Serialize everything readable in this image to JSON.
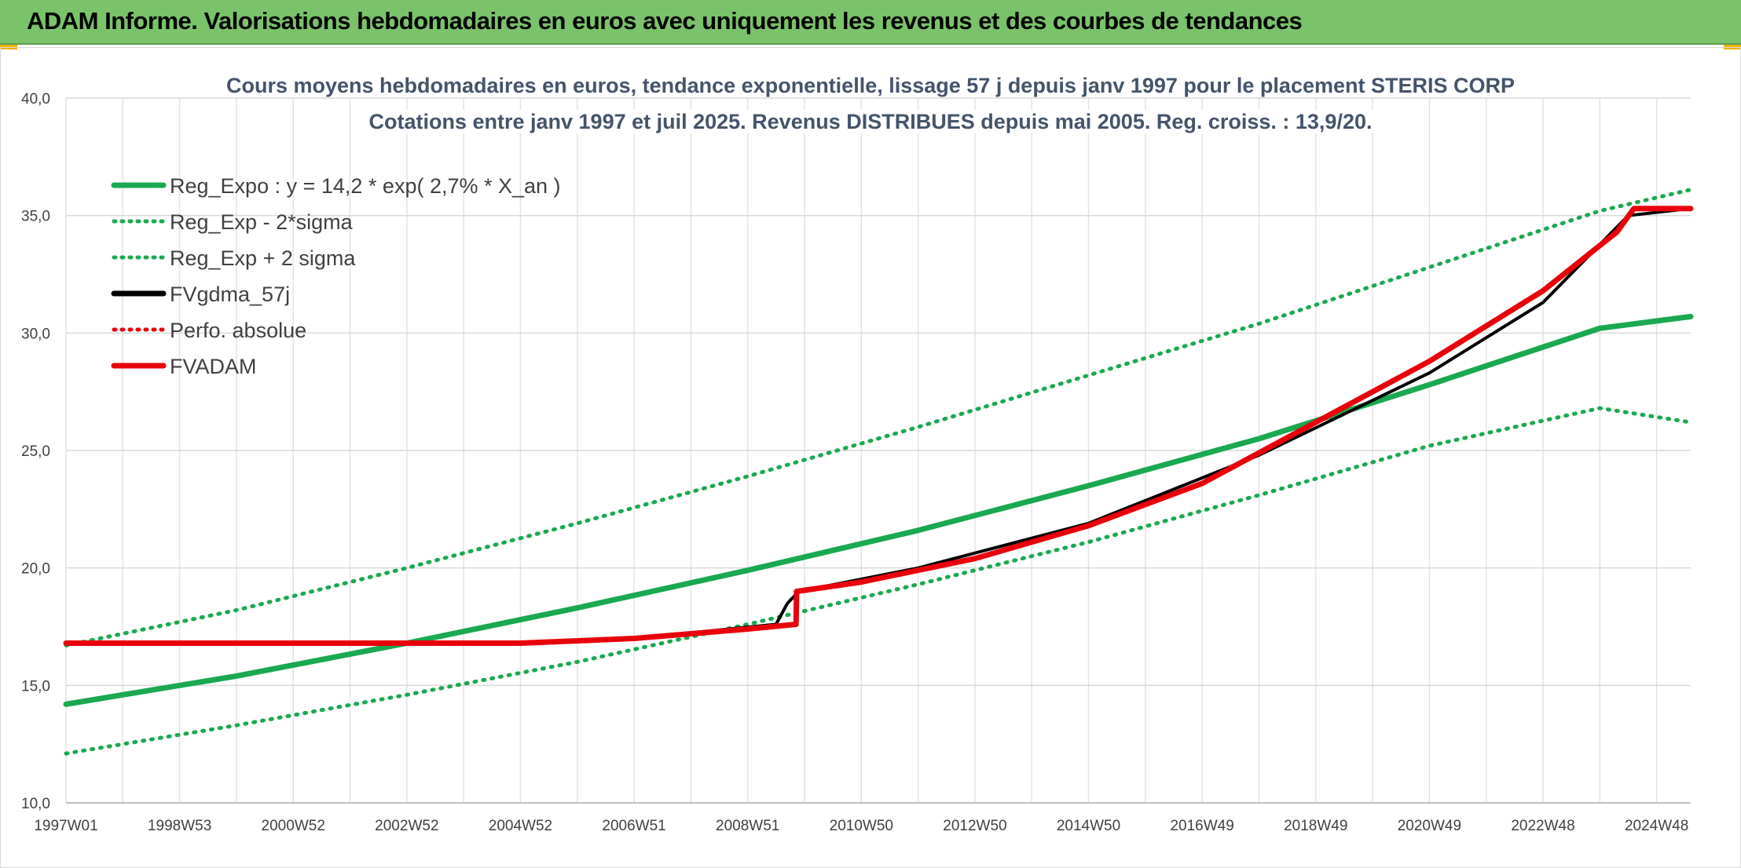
{
  "header": {
    "title": "ADAM Informe. Valorisations hebdomadaires en euros avec uniquement les revenus et des courbes de tendances"
  },
  "chart_data": {
    "type": "line",
    "title_line1": "Cours moyens hebdomadaires en euros, tendance exponentielle, lissage 57 j depuis janv 1997 pour le placement STERIS CORP",
    "title_line2": "Cotations entre janv 1997 et juil 2025. Revenus DISTRIBUES depuis mai 2005. Reg. croiss. : 13,9/20.",
    "x_tick_labels": [
      "1997W01",
      "1998W53",
      "2000W52",
      "2002W52",
      "2004W52",
      "2006W51",
      "2008W51",
      "2010W50",
      "2012W50",
      "2014W50",
      "2016W49",
      "2018W49",
      "2020W49",
      "2022W48",
      "2024W48"
    ],
    "x_tick_years": [
      1997.0,
      1999.0,
      2001.0,
      2003.0,
      2005.0,
      2007.0,
      2009.0,
      2011.0,
      2013.0,
      2015.0,
      2017.0,
      2019.0,
      2021.0,
      2023.0,
      2025.0
    ],
    "x_range": [
      1997.0,
      2025.6
    ],
    "ylim": [
      10,
      40
    ],
    "y_ticks": [
      "10,0",
      "15,0",
      "20,0",
      "25,0",
      "30,0",
      "35,0",
      "40,0"
    ],
    "grid": true,
    "legend_position": "top-left",
    "series": [
      {
        "name": "Reg_Expo : y = 14,2 * exp( 2,7% *  X_an )",
        "color": "#1aa850",
        "style": "solid",
        "x": [
          1997.0,
          2000.0,
          2003.0,
          2006.0,
          2009.0,
          2012.0,
          2015.0,
          2018.0,
          2021.0,
          2024.0,
          2025.6
        ],
        "y": [
          14.2,
          15.4,
          16.8,
          18.3,
          19.9,
          21.6,
          23.5,
          25.5,
          27.8,
          30.2,
          30.7
        ]
      },
      {
        "name": "Reg_Exp - 2*sigma",
        "color": "#1aa850",
        "style": "dotted",
        "x": [
          1997.0,
          2000.0,
          2003.0,
          2006.0,
          2009.0,
          2012.0,
          2015.0,
          2018.0,
          2021.0,
          2024.0,
          2025.6
        ],
        "y": [
          12.1,
          13.3,
          14.6,
          16.0,
          17.6,
          19.3,
          21.1,
          23.1,
          25.2,
          26.8,
          26.2
        ]
      },
      {
        "name": "Reg_Exp + 2 sigma",
        "color": "#1aa850",
        "style": "dotted",
        "x": [
          1997.0,
          2000.0,
          2003.0,
          2006.0,
          2009.0,
          2012.0,
          2015.0,
          2018.0,
          2021.0,
          2024.0,
          2025.6
        ],
        "y": [
          16.7,
          18.2,
          20.0,
          21.9,
          23.9,
          26.0,
          28.2,
          30.4,
          32.8,
          35.2,
          36.1
        ]
      },
      {
        "name": "FVgdma_57j",
        "color": "#000000",
        "style": "solid",
        "x": [
          1997.0,
          2005.0,
          2007.0,
          2009.5,
          2009.7,
          2009.9,
          2012.0,
          2015.0,
          2018.0,
          2021.0,
          2023.0,
          2024.5,
          2025.6
        ],
        "y": [
          16.8,
          16.8,
          17.0,
          17.6,
          18.5,
          19.0,
          20.0,
          21.9,
          24.8,
          28.3,
          31.3,
          35.0,
          35.3
        ]
      },
      {
        "name": "Perfo. absolue",
        "color": "#e8000b",
        "style": "dotted",
        "x": [],
        "y": []
      },
      {
        "name": "FVADAM",
        "color": "#e8000b",
        "style": "solid",
        "x": [
          1997.0,
          2005.0,
          2007.0,
          2009.0,
          2009.85,
          2009.86,
          2011.0,
          2013.0,
          2015.0,
          2017.0,
          2019.0,
          2021.0,
          2023.0,
          2024.3,
          2024.6,
          2025.6
        ],
        "y": [
          16.8,
          16.8,
          17.0,
          17.4,
          17.6,
          19.0,
          19.4,
          20.4,
          21.8,
          23.6,
          26.2,
          28.8,
          31.8,
          34.3,
          35.3,
          35.3
        ]
      }
    ]
  }
}
